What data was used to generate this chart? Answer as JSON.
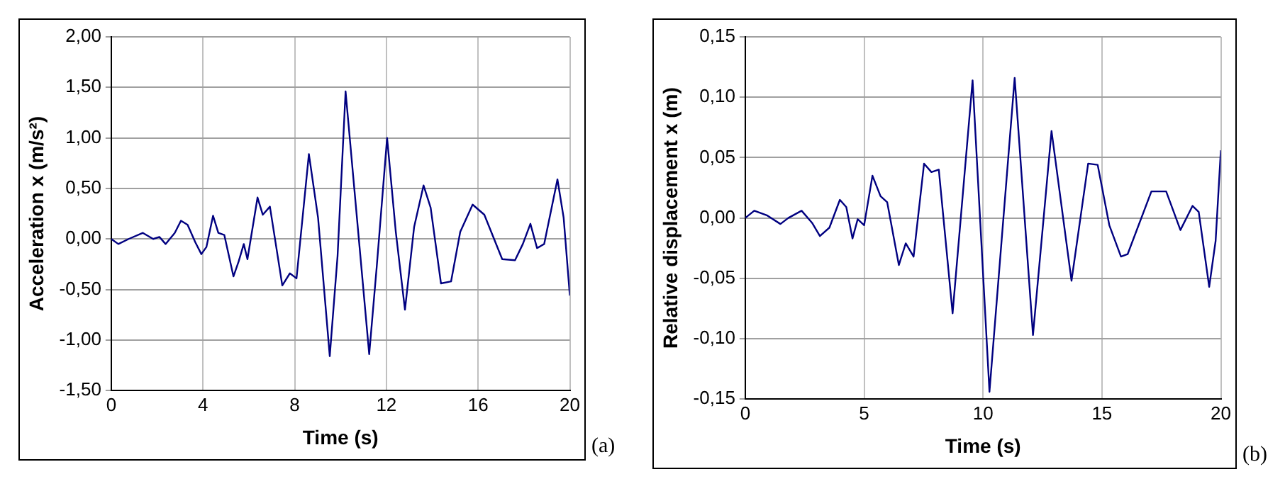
{
  "chart_data": [
    {
      "type": "line",
      "xlabel": "Time (s)",
      "ylabel": "Acceleration x (m/s²)",
      "annotations": [
        "(a)"
      ],
      "xlim": [
        0,
        20
      ],
      "xticks": [
        0,
        4,
        8,
        12,
        16,
        20
      ],
      "ylim": [
        -1.5,
        2
      ],
      "yticks": [
        {
          "value": -1.5,
          "label": "-1,50"
        },
        {
          "value": -1,
          "label": "-1,00"
        },
        {
          "value": -0.5,
          "label": "-0,50"
        },
        {
          "value": 0,
          "label": "0,00"
        },
        {
          "value": 0.5,
          "label": "0,50"
        },
        {
          "value": 1,
          "label": "1,00"
        },
        {
          "value": 1.5,
          "label": "1,50"
        },
        {
          "value": 2,
          "label": "2,00"
        }
      ],
      "grid": true,
      "marker": "none",
      "line_style": "solid",
      "series": [
        {
          "color": "#000080",
          "x": [
            0,
            0.31,
            0.76,
            1.38,
            1.83,
            2.1,
            2.37,
            2.77,
            3.04,
            3.33,
            3.66,
            3.93,
            4.15,
            4.44,
            4.67,
            4.93,
            5.33,
            5.56,
            5.78,
            5.94,
            6.38,
            6.61,
            6.92,
            7.46,
            7.79,
            8.08,
            8.62,
            9.02,
            9.53,
            9.87,
            10.22,
            10.58,
            11.25,
            11.58,
            12.03,
            12.41,
            12.81,
            13.21,
            13.62,
            13.93,
            14.38,
            14.82,
            15.22,
            15.76,
            16.27,
            17.05,
            17.61,
            17.95,
            18.28,
            18.57,
            18.88,
            19.46,
            19.73,
            20
          ],
          "values": [
            0,
            -0.05,
            0,
            0.06,
            0,
            0.02,
            -0.05,
            0.06,
            0.18,
            0.14,
            -0.03,
            -0.15,
            -0.08,
            0.23,
            0.06,
            0.04,
            -0.37,
            -0.22,
            -0.05,
            -0.2,
            0.41,
            0.24,
            0.32,
            -0.46,
            -0.34,
            -0.39,
            0.84,
            0.21,
            -1.16,
            -0.17,
            1.46,
            0.55,
            -1.14,
            -0.27,
            1,
            0.07,
            -0.7,
            0.12,
            0.53,
            0.31,
            -0.44,
            -0.42,
            0.07,
            0.34,
            0.24,
            -0.2,
            -0.21,
            -0.05,
            0.15,
            -0.09,
            -0.05,
            0.59,
            0.21,
            -0.56
          ]
        }
      ]
    },
    {
      "type": "line",
      "xlabel": "Time (s)",
      "ylabel": "Relative displacement x (m)",
      "annotations": [
        "(b)"
      ],
      "xlim": [
        0,
        20
      ],
      "xticks": [
        0,
        5,
        10,
        15,
        20
      ],
      "ylim": [
        -0.15,
        0.15
      ],
      "yticks": [
        {
          "value": -0.15,
          "label": "-0,15"
        },
        {
          "value": -0.1,
          "label": "-0,10"
        },
        {
          "value": -0.05,
          "label": "-0,05"
        },
        {
          "value": 0,
          "label": "0,00"
        },
        {
          "value": 0.05,
          "label": "0,05"
        },
        {
          "value": 0.1,
          "label": "0,10"
        },
        {
          "value": 0.15,
          "label": "0,15"
        }
      ],
      "grid": true,
      "marker": "none",
      "line_style": "solid",
      "series": [
        {
          "color": "#000080",
          "x": [
            0,
            0.38,
            0.93,
            1.48,
            1.81,
            2.37,
            2.81,
            3.14,
            3.54,
            3.98,
            4.25,
            4.51,
            4.73,
            5,
            5.35,
            5.69,
            5.97,
            6.46,
            6.75,
            7.08,
            7.52,
            7.83,
            8.14,
            8.72,
            9.56,
            10.27,
            11.33,
            12.1,
            12.88,
            13.72,
            14.42,
            14.82,
            15.31,
            15.8,
            16.08,
            17.08,
            17.7,
            18.3,
            18.81,
            19.07,
            19.51,
            19.78,
            20
          ],
          "values": [
            0,
            0.006,
            0.002,
            -0.005,
            0,
            0.006,
            -0.004,
            -0.015,
            -0.008,
            0.015,
            0.009,
            -0.017,
            -0.001,
            -0.006,
            0.035,
            0.018,
            0.013,
            -0.039,
            -0.021,
            -0.032,
            0.045,
            0.038,
            0.04,
            -0.079,
            0.114,
            -0.144,
            0.116,
            -0.097,
            0.072,
            -0.052,
            0.045,
            0.044,
            -0.006,
            -0.032,
            -0.03,
            0.022,
            0.022,
            -0.01,
            0.01,
            0.005,
            -0.057,
            -0.019,
            0.056
          ]
        }
      ]
    }
  ]
}
